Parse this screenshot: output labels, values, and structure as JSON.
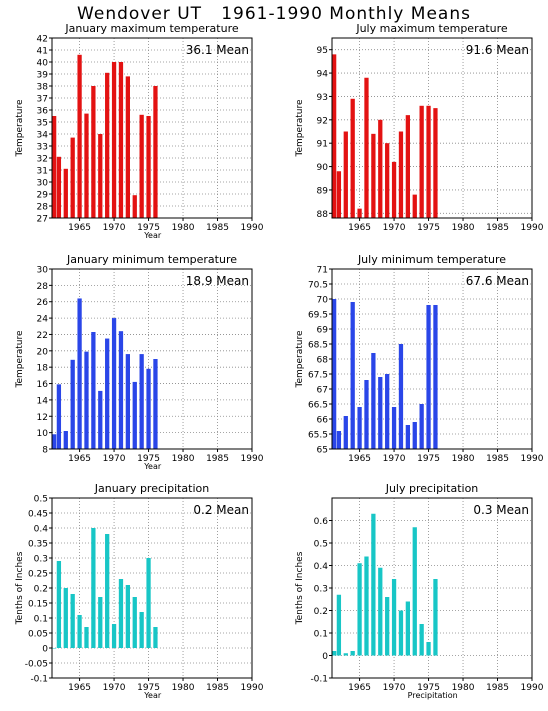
{
  "page_title": "Wendover UT   1961-1990 Monthly Means",
  "colors": {
    "temp_max": "#e31212",
    "temp_min": "#2a46e8",
    "precip": "#18c6c6",
    "grid": "#888888"
  },
  "chart_data": [
    {
      "type": "bar",
      "title": "January maximum temperature",
      "ylabel": "Temperature",
      "xlabel": "Year",
      "annotation": "36.1 Mean",
      "color": "#e31212",
      "xlim": [
        1961,
        1990
      ],
      "xticks": [
        1965,
        1970,
        1975,
        1980,
        1985,
        1990
      ],
      "ylim": [
        27,
        42
      ],
      "yticks": [
        "27",
        "28",
        "29",
        "30",
        "31",
        "32",
        "33",
        "34",
        "35",
        "36",
        "37",
        "38",
        "39",
        "40",
        "41",
        "42"
      ],
      "x": [
        1961,
        1962,
        1963,
        1964,
        1965,
        1966,
        1967,
        1968,
        1969,
        1970,
        1971,
        1972,
        1973,
        1974,
        1975,
        1976
      ],
      "values": [
        35.5,
        32.1,
        31.1,
        33.7,
        40.6,
        35.7,
        38.0,
        34.0,
        39.1,
        40.0,
        40.0,
        38.8,
        28.9,
        35.6,
        35.5,
        38.0
      ],
      "grid": true
    },
    {
      "type": "bar",
      "title": "July maximum temperature",
      "ylabel": "Temperature",
      "xlabel": "",
      "annotation": "91.6 Mean",
      "color": "#e31212",
      "xlim": [
        1961,
        1990
      ],
      "xticks": [
        1965,
        1970,
        1975,
        1980,
        1985,
        1990
      ],
      "ylim": [
        87.8,
        95.5
      ],
      "yticks": [
        "88",
        "89",
        "90",
        "91",
        "92",
        "93",
        "94",
        "95"
      ],
      "x": [
        1961,
        1962,
        1963,
        1964,
        1965,
        1966,
        1967,
        1968,
        1969,
        1970,
        1971,
        1972,
        1973,
        1974,
        1975,
        1976
      ],
      "values": [
        94.8,
        89.8,
        91.5,
        92.9,
        88.2,
        93.8,
        91.4,
        92.0,
        91.0,
        90.2,
        91.5,
        92.2,
        88.8,
        92.6,
        92.6,
        92.5
      ],
      "grid": true
    },
    {
      "type": "bar",
      "title": "January minimum temperature",
      "ylabel": "Temperature",
      "xlabel": "Year",
      "annotation": "18.9 Mean",
      "color": "#2a46e8",
      "xlim": [
        1961,
        1990
      ],
      "xticks": [
        1965,
        1970,
        1975,
        1980,
        1985,
        1990
      ],
      "ylim": [
        8,
        30
      ],
      "yticks": [
        "8",
        "10",
        "12",
        "14",
        "16",
        "18",
        "20",
        "22",
        "24",
        "26",
        "28",
        "30"
      ],
      "x": [
        1961,
        1962,
        1963,
        1964,
        1965,
        1966,
        1967,
        1968,
        1969,
        1970,
        1971,
        1972,
        1973,
        1974,
        1975,
        1976
      ],
      "values": [
        9.8,
        15.9,
        10.2,
        18.9,
        26.4,
        19.9,
        22.3,
        15.1,
        21.5,
        24.0,
        22.4,
        19.6,
        16.2,
        19.6,
        17.8,
        19.0
      ],
      "grid": true
    },
    {
      "type": "bar",
      "title": "July minimum temperature",
      "ylabel": "Temperature",
      "xlabel": "",
      "annotation": "67.6 Mean",
      "color": "#2a46e8",
      "xlim": [
        1961,
        1990
      ],
      "xticks": [
        1965,
        1970,
        1975,
        1980,
        1985,
        1990
      ],
      "ylim": [
        65,
        71
      ],
      "yticks": [
        "65",
        "65.5",
        "66",
        "66.5",
        "67",
        "67.5",
        "68",
        "68.5",
        "69",
        "69.5",
        "70",
        "70.5",
        "71"
      ],
      "x": [
        1961,
        1962,
        1963,
        1964,
        1965,
        1966,
        1967,
        1968,
        1969,
        1970,
        1971,
        1972,
        1973,
        1974,
        1975,
        1976
      ],
      "values": [
        70.0,
        65.6,
        66.1,
        69.9,
        66.4,
        67.3,
        68.2,
        67.4,
        67.5,
        66.4,
        68.5,
        65.8,
        65.9,
        66.5,
        69.8,
        69.8
      ],
      "grid": true
    },
    {
      "type": "bar",
      "title": "January precipitation",
      "ylabel": "Tenths of Inches",
      "xlabel": "Year",
      "annotation": "0.2 Mean",
      "color": "#18c6c6",
      "xlim": [
        1961,
        1990
      ],
      "xticks": [
        1965,
        1970,
        1975,
        1980,
        1985,
        1990
      ],
      "ylim": [
        -0.1,
        0.5
      ],
      "yticks": [
        "-0.1",
        "-0.05",
        "0",
        "0.05",
        "0.1",
        "0.15",
        "0.2",
        "0.25",
        "0.3",
        "0.35",
        "0.4",
        "0.45",
        "0.5"
      ],
      "x": [
        1961,
        1962,
        1963,
        1964,
        1965,
        1966,
        1967,
        1968,
        1969,
        1970,
        1971,
        1972,
        1973,
        1974,
        1975,
        1976
      ],
      "values": [
        0.0,
        0.29,
        0.2,
        0.18,
        0.11,
        0.07,
        0.4,
        0.17,
        0.38,
        0.08,
        0.23,
        0.21,
        0.17,
        0.12,
        0.3,
        0.07
      ],
      "grid": true
    },
    {
      "type": "bar",
      "title": "July precipitation",
      "ylabel": "Tenths of Inches",
      "xlabel": "Precipitation",
      "annotation": "0.3 Mean",
      "color": "#18c6c6",
      "xlim": [
        1961,
        1990
      ],
      "xticks": [
        1965,
        1970,
        1975,
        1980,
        1985,
        1990
      ],
      "ylim": [
        -0.1,
        0.7
      ],
      "yticks": [
        "-0.1",
        "0",
        "0.1",
        "0.2",
        "0.3",
        "0.4",
        "0.5",
        "0.6"
      ],
      "x": [
        1961,
        1962,
        1963,
        1964,
        1965,
        1966,
        1967,
        1968,
        1969,
        1970,
        1971,
        1972,
        1973,
        1974,
        1975,
        1976
      ],
      "values": [
        0.02,
        0.27,
        0.01,
        0.02,
        0.41,
        0.44,
        0.63,
        0.39,
        0.26,
        0.34,
        0.2,
        0.24,
        0.57,
        0.14,
        0.06,
        0.34
      ],
      "grid": true
    }
  ]
}
